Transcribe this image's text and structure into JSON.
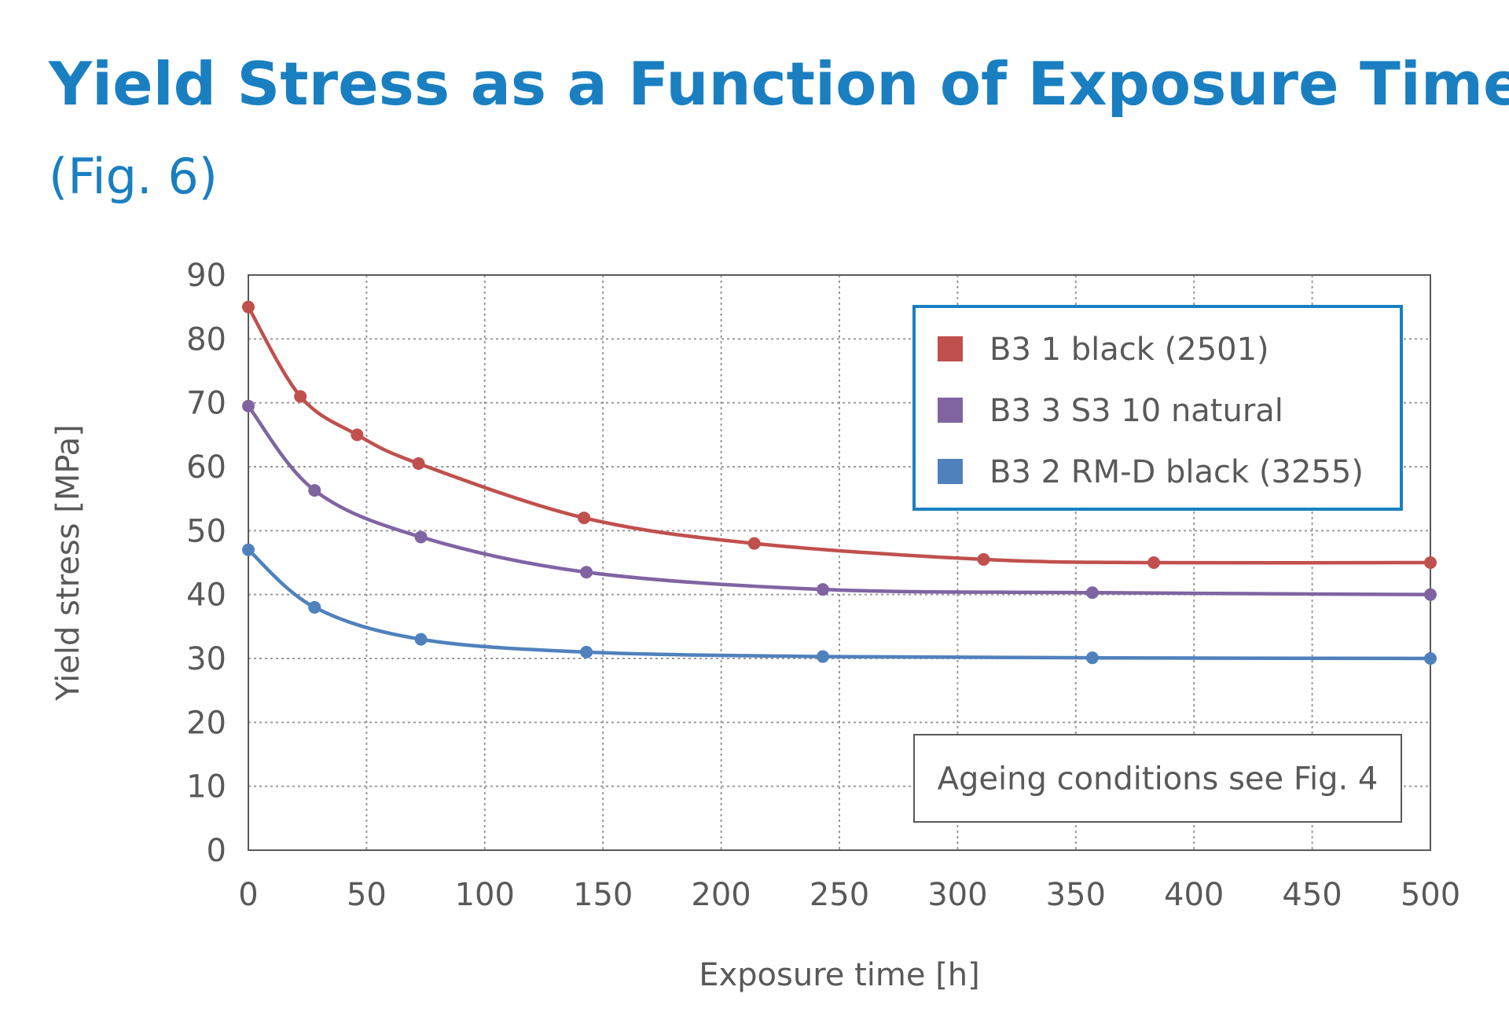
{
  "title": "Yield Stress as a Function of Exposure Time",
  "subtitle": "(Fig. 6)",
  "note": "Ageing conditions see Fig. 4",
  "colors": {
    "title": "#1a7fc1",
    "legend_border": "#1a7fc1",
    "text": "#595959"
  },
  "chart_data": {
    "type": "line",
    "xlabel": "Exposure time [h]",
    "ylabel": "Yield stress [MPa]",
    "xlim": [
      0,
      500
    ],
    "ylim": [
      0,
      90
    ],
    "xticks": [
      "0",
      "50",
      "100",
      "150",
      "200",
      "250",
      "300",
      "350",
      "400",
      "450",
      "500"
    ],
    "yticks": [
      "0",
      "10",
      "20",
      "30",
      "40",
      "50",
      "60",
      "70",
      "80",
      "90"
    ],
    "grid": true,
    "legend_position": "top-right",
    "series": [
      {
        "name": "B3 1 black (2501)",
        "color": "#c0504d",
        "points": [
          [
            0,
            85
          ],
          [
            22,
            71
          ],
          [
            46,
            65
          ],
          [
            72,
            60.5
          ],
          [
            142,
            52
          ],
          [
            214,
            48
          ],
          [
            311,
            45.5
          ],
          [
            383,
            45
          ],
          [
            500,
            45
          ]
        ]
      },
      {
        "name": "B3 3 S3 10 natural",
        "color": "#8064a2",
        "points": [
          [
            0,
            69.5
          ],
          [
            28,
            56.3
          ],
          [
            73,
            49
          ],
          [
            143,
            43.5
          ],
          [
            243,
            40.8
          ],
          [
            357,
            40.3
          ],
          [
            500,
            40
          ]
        ]
      },
      {
        "name": "B3 2 RM-D black (3255)",
        "color": "#4f81bd",
        "points": [
          [
            0,
            47
          ],
          [
            28,
            38
          ],
          [
            73,
            33
          ],
          [
            143,
            31
          ],
          [
            243,
            30.3
          ],
          [
            357,
            30.1
          ],
          [
            500,
            30
          ]
        ]
      }
    ]
  }
}
